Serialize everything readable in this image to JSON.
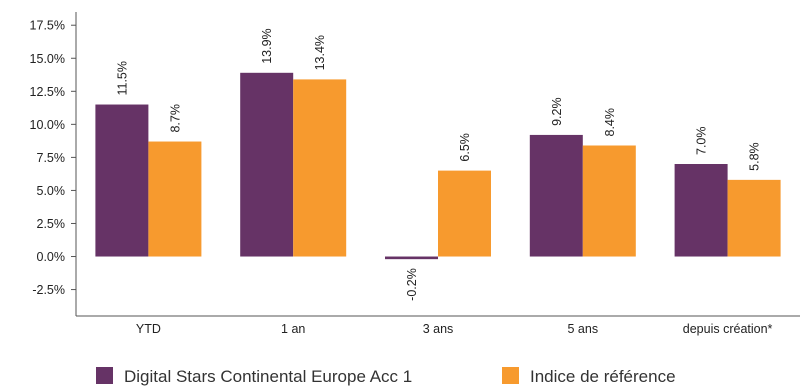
{
  "chart_data": {
    "type": "bar",
    "categories": [
      "YTD",
      "1 an",
      "3 ans",
      "5 ans",
      "depuis création*"
    ],
    "series": [
      {
        "name": "Digital Stars Continental Europe Acc 1",
        "values": [
          11.5,
          13.9,
          -0.2,
          9.2,
          7.0
        ],
        "labels": [
          "11.5%",
          "13.9%",
          "-0.2%",
          "9.2%",
          "7.0%"
        ],
        "color": "#663366"
      },
      {
        "name": "Indice de référence",
        "values": [
          8.7,
          13.4,
          6.5,
          8.4,
          5.8
        ],
        "labels": [
          "8.7%",
          "13.4%",
          "6.5%",
          "8.4%",
          "5.8%"
        ],
        "color": "#F79A2E"
      }
    ],
    "yticks": [
      -2.5,
      0.0,
      2.5,
      5.0,
      7.5,
      10.0,
      12.5,
      15.0,
      17.5
    ],
    "ytick_labels": [
      "-2.5%",
      "0.0%",
      "2.5%",
      "5.0%",
      "7.5%",
      "10.0%",
      "12.5%",
      "15.0%",
      "17.5%"
    ],
    "ylim": [
      -4.5,
      18.5
    ],
    "grid": false,
    "legend_position": "bottom",
    "title": "",
    "xlabel": "",
    "ylabel": ""
  }
}
